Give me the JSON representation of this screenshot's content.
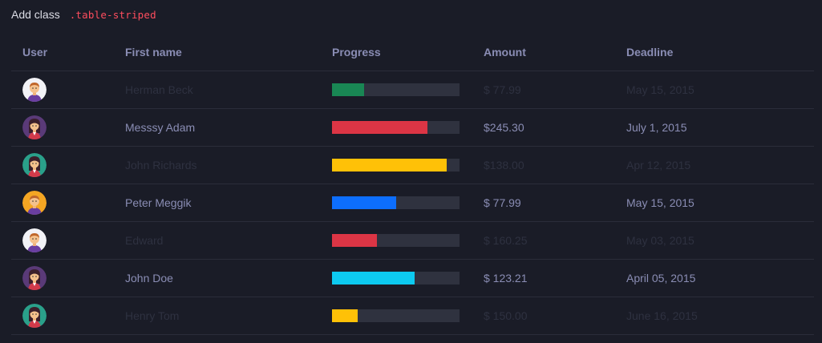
{
  "caption": {
    "text": "Add class",
    "code": ".table-striped"
  },
  "table": {
    "headers": {
      "user": "User",
      "first_name": "First name",
      "progress": "Progress",
      "amount": "Amount",
      "deadline": "Deadline"
    },
    "rows": [
      {
        "avatar": "male-avatar-icon",
        "avatar_bg": "#f2f2f6",
        "first_name": "Herman Beck",
        "progress": 0.25,
        "bar_color": "#198754",
        "amount": "$ 77.99",
        "deadline": "May 15, 2015",
        "striped": true
      },
      {
        "avatar": "female-avatar-icon",
        "avatar_bg": "#5a3a78",
        "first_name": "Messsy Adam",
        "progress": 0.75,
        "bar_color": "#dc3545",
        "amount": "$245.30",
        "deadline": "July 1, 2015",
        "striped": false
      },
      {
        "avatar": "female-avatar-icon",
        "avatar_bg": "#2aa08a",
        "first_name": "John Richards",
        "progress": 0.9,
        "bar_color": "#ffc107",
        "amount": "$138.00",
        "deadline": "Apr 12, 2015",
        "striped": true
      },
      {
        "avatar": "male-avatar-icon",
        "avatar_bg": "#f5a623",
        "first_name": "Peter Meggik",
        "progress": 0.5,
        "bar_color": "#0d6efd",
        "amount": "$ 77.99",
        "deadline": "May 15, 2015",
        "striped": false
      },
      {
        "avatar": "male-avatar-icon",
        "avatar_bg": "#f2f2f6",
        "first_name": "Edward",
        "progress": 0.35,
        "bar_color": "#dc3545",
        "amount": "$ 160.25",
        "deadline": "May 03, 2015",
        "striped": true
      },
      {
        "avatar": "female-avatar-icon",
        "avatar_bg": "#5a3a78",
        "first_name": "John Doe",
        "progress": 0.65,
        "bar_color": "#0dcaf0",
        "amount": "$ 123.21",
        "deadline": "April 05, 2015",
        "striped": false
      },
      {
        "avatar": "female-avatar-icon",
        "avatar_bg": "#2aa08a",
        "first_name": "Henry Tom",
        "progress": 0.2,
        "bar_color": "#ffc107",
        "amount": "$ 150.00",
        "deadline": "June 16, 2015",
        "striped": true
      }
    ]
  }
}
